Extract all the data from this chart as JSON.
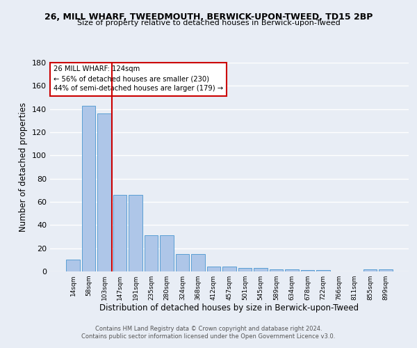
{
  "title1": "26, MILL WHARF, TWEEDMOUTH, BERWICK-UPON-TWEED, TD15 2BP",
  "title2": "Size of property relative to detached houses in Berwick-upon-Tweed",
  "xlabel": "Distribution of detached houses by size in Berwick-upon-Tweed",
  "ylabel": "Number of detached properties",
  "bar_labels": [
    "14sqm",
    "58sqm",
    "103sqm",
    "147sqm",
    "191sqm",
    "235sqm",
    "280sqm",
    "324sqm",
    "368sqm",
    "412sqm",
    "457sqm",
    "501sqm",
    "545sqm",
    "589sqm",
    "634sqm",
    "678sqm",
    "722sqm",
    "766sqm",
    "811sqm",
    "855sqm",
    "899sqm"
  ],
  "bar_values": [
    10,
    143,
    136,
    66,
    66,
    31,
    31,
    15,
    15,
    4,
    4,
    3,
    3,
    2,
    2,
    1,
    1,
    0,
    0,
    2,
    2
  ],
  "bar_color": "#aec6e8",
  "bar_edgecolor": "#5a9fd4",
  "background_color": "#e8edf5",
  "grid_color": "#ffffff",
  "ylim": [
    0,
    180
  ],
  "yticks": [
    0,
    20,
    40,
    60,
    80,
    100,
    120,
    140,
    160,
    180
  ],
  "property_label": "26 MILL WHARF: 124sqm",
  "annotation_line1": "← 56% of detached houses are smaller (230)",
  "annotation_line2": "44% of semi-detached houses are larger (179) →",
  "vline_color": "#cc0000",
  "vline_x": 2.5,
  "footnote1": "Contains HM Land Registry data © Crown copyright and database right 2024.",
  "footnote2": "Contains public sector information licensed under the Open Government Licence v3.0."
}
